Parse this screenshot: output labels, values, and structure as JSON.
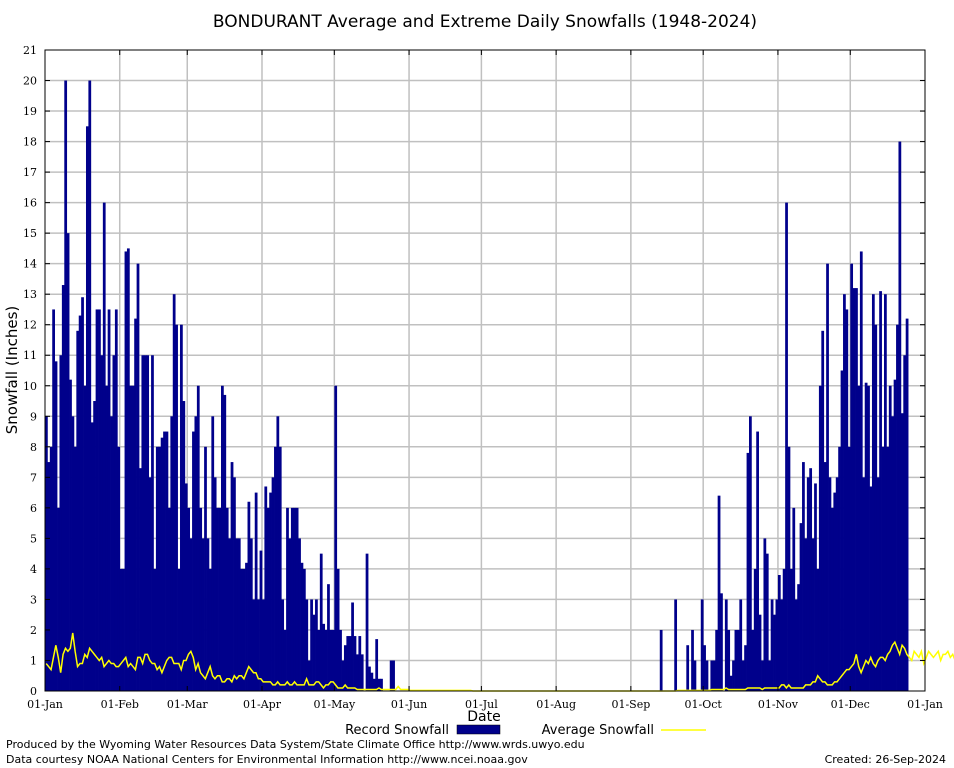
{
  "chart_data": {
    "type": "bar",
    "title": "BONDURANT Average and Extreme Daily Snowfalls (1948-2024)",
    "xlabel": "Date",
    "ylabel": "Snowfall (Inches)",
    "ylim": [
      0,
      21
    ],
    "yticks": [
      0,
      1,
      2,
      3,
      4,
      5,
      6,
      7,
      8,
      9,
      10,
      11,
      12,
      13,
      14,
      15,
      16,
      17,
      18,
      19,
      20,
      21
    ],
    "xticks": [
      {
        "day": 1,
        "label": "01-Jan"
      },
      {
        "day": 32,
        "label": "01-Feb"
      },
      {
        "day": 60,
        "label": "01-Mar"
      },
      {
        "day": 91,
        "label": "01-Apr"
      },
      {
        "day": 121,
        "label": "01-May"
      },
      {
        "day": 152,
        "label": "01-Jun"
      },
      {
        "day": 182,
        "label": "01-Jul"
      },
      {
        "day": 213,
        "label": "01-Aug"
      },
      {
        "day": 244,
        "label": "01-Sep"
      },
      {
        "day": 274,
        "label": "01-Oct"
      },
      {
        "day": 305,
        "label": "01-Nov"
      },
      {
        "day": 335,
        "label": "01-Dec"
      },
      {
        "day": 366,
        "label": "01-Jan"
      }
    ],
    "grid": true,
    "legend_position": "bottom",
    "series": [
      {
        "name": "Record Snowfall",
        "kind": "bar",
        "color": "#00008b",
        "values": [
          9,
          7.5,
          8,
          12.5,
          10.8,
          6,
          11,
          13.3,
          20,
          15,
          10.2,
          9,
          8,
          11.8,
          12.3,
          12.9,
          10,
          18.5,
          20,
          8.8,
          9.5,
          12.5,
          12.5,
          11,
          16,
          10,
          12.5,
          9,
          11,
          12.5,
          8,
          4,
          4,
          14.4,
          14.5,
          10,
          10,
          12.2,
          14,
          7.3,
          11,
          11,
          11,
          7,
          11,
          4,
          8,
          8,
          8.3,
          8.5,
          8.5,
          6,
          9,
          13,
          12,
          4,
          12,
          9.5,
          6.8,
          6,
          5,
          8.5,
          9,
          10,
          6,
          5,
          8,
          5,
          4,
          9,
          7,
          6,
          6,
          10,
          9.7,
          6,
          5,
          7.5,
          7,
          5,
          5,
          4,
          4,
          4.2,
          6.2,
          5,
          3,
          6.5,
          3,
          4.6,
          3,
          6.7,
          6,
          6.5,
          7,
          8,
          9,
          8,
          3,
          2,
          6,
          5,
          6,
          6,
          6,
          5,
          4.2,
          4,
          3,
          1,
          3,
          2.5,
          3,
          2,
          4.5,
          2.2,
          2,
          3.5,
          2,
          2,
          10,
          4,
          2,
          1,
          1.5,
          1.8,
          1.8,
          2.9,
          1.8,
          1.2,
          1.8,
          1.2,
          0,
          4.5,
          0.8,
          0.6,
          0.4,
          1.7,
          0.4,
          0.4,
          0,
          0,
          0,
          1,
          1,
          0,
          0,
          0,
          0,
          0,
          0,
          0,
          0,
          0,
          0,
          0,
          0,
          0,
          0,
          0,
          0,
          0,
          0,
          0,
          0,
          0,
          0,
          0,
          0,
          0,
          0,
          0,
          0,
          0,
          0,
          0,
          0,
          0,
          0,
          0,
          0,
          0,
          0,
          0,
          0,
          0,
          0,
          0,
          0,
          0,
          0,
          0,
          0,
          0,
          0,
          0,
          0,
          0,
          0,
          0,
          0,
          0,
          0,
          0,
          0,
          0,
          0,
          0,
          0,
          0,
          0,
          0,
          0,
          0,
          0,
          0,
          0,
          0,
          0,
          0,
          0,
          0,
          0,
          0,
          0,
          0,
          0,
          0,
          0,
          0,
          0,
          0,
          0,
          0,
          0,
          0,
          0,
          0,
          0,
          0,
          0,
          0,
          0,
          0,
          0,
          0,
          0,
          0,
          0,
          0,
          0,
          0,
          0,
          0,
          0,
          2,
          0,
          0,
          0,
          0,
          0,
          3,
          0,
          0,
          0,
          0,
          1.5,
          0,
          2,
          1,
          0,
          0,
          3,
          1.5,
          1,
          0,
          1,
          1,
          2,
          6.4,
          3.2,
          0,
          3,
          2,
          0.5,
          1,
          2,
          2,
          3,
          1,
          1.5,
          7.8,
          9,
          2,
          4,
          8.5,
          2.5,
          1,
          5,
          4.5,
          1,
          3,
          2.5,
          3,
          3.8,
          3,
          4,
          16,
          8,
          4,
          6,
          3,
          3.5,
          5.5,
          7.5,
          5,
          7,
          7.3,
          5,
          6.8,
          4,
          10,
          11.8,
          7.5,
          14,
          7,
          6,
          6.5,
          7,
          8,
          10.5,
          13,
          12.5,
          8,
          14,
          13.2,
          13.2,
          10,
          14.4,
          7,
          10.1,
          10,
          6.7,
          13,
          12,
          7,
          13.1,
          8,
          13,
          8,
          10,
          9,
          10.2,
          12,
          18,
          9.1,
          11,
          12.2
        ]
      },
      {
        "name": "Average Snowfall",
        "kind": "line",
        "color": "#ffff00",
        "values": [
          0.9,
          0.8,
          0.7,
          1.1,
          1.5,
          1.1,
          0.6,
          1.2,
          1.4,
          1.3,
          1.4,
          1.9,
          1.3,
          0.8,
          0.9,
          0.9,
          1.2,
          1.1,
          1.4,
          1.3,
          1.2,
          1.1,
          1,
          1.1,
          0.8,
          0.9,
          1,
          0.9,
          0.9,
          0.8,
          0.8,
          0.9,
          1,
          1.1,
          0.8,
          0.9,
          0.8,
          0.7,
          1.1,
          1.1,
          0.9,
          1.2,
          1.2,
          1,
          0.9,
          0.9,
          0.7,
          0.8,
          0.6,
          0.8,
          1,
          1.1,
          1.1,
          0.9,
          0.9,
          0.9,
          0.7,
          1,
          1,
          1.2,
          1.3,
          1.1,
          0.7,
          0.9,
          0.6,
          0.5,
          0.4,
          0.6,
          0.8,
          0.5,
          0.4,
          0.5,
          0.5,
          0.3,
          0.3,
          0.4,
          0.4,
          0.3,
          0.5,
          0.4,
          0.5,
          0.5,
          0.4,
          0.6,
          0.8,
          0.7,
          0.6,
          0.6,
          0.4,
          0.4,
          0.3,
          0.3,
          0.3,
          0.3,
          0.2,
          0.2,
          0.3,
          0.2,
          0.2,
          0.2,
          0.3,
          0.2,
          0.2,
          0.3,
          0.2,
          0.2,
          0.2,
          0.2,
          0.4,
          0.2,
          0.2,
          0.2,
          0.3,
          0.3,
          0.2,
          0.1,
          0.2,
          0.2,
          0.3,
          0.3,
          0.2,
          0.1,
          0.1,
          0.1,
          0.2,
          0.1,
          0.1,
          0.1,
          0.1,
          0.05,
          0.05,
          0.05,
          0.05,
          0.05,
          0.05,
          0.05,
          0.05,
          0.05,
          0.1,
          0.05,
          0.05,
          0.05,
          0.05,
          0.05,
          0.05,
          0.05,
          0.15,
          0.05,
          0.05,
          0.05,
          0.05,
          0.02,
          0.02,
          0.02,
          0.02,
          0.02,
          0.02,
          0.02,
          0.02,
          0.02,
          0.02,
          0.02,
          0.02,
          0.02,
          0.02,
          0.02,
          0.02,
          0.02,
          0.02,
          0.02,
          0.02,
          0.02,
          0.02,
          0.02,
          0.02,
          0.02,
          0.02,
          0,
          0,
          0,
          0,
          0,
          0,
          0,
          0,
          0,
          0,
          0,
          0,
          0,
          0,
          0,
          0,
          0,
          0,
          0,
          0,
          0,
          0,
          0,
          0,
          0,
          0,
          0,
          0,
          0,
          0,
          0,
          0,
          0,
          0,
          0,
          0,
          0,
          0,
          0,
          0,
          0,
          0,
          0,
          0,
          0,
          0,
          0,
          0,
          0,
          0,
          0,
          0,
          0,
          0,
          0,
          0,
          0,
          0,
          0,
          0,
          0,
          0,
          0,
          0,
          0,
          0,
          0,
          0,
          0,
          0,
          0,
          0,
          0,
          0,
          0,
          0,
          0,
          0,
          0,
          0,
          0,
          0,
          0,
          0,
          0,
          0.02,
          0.02,
          0.02,
          0.02,
          0.02,
          0.02,
          0.02,
          0.02,
          0.02,
          0.02,
          0.02,
          0.02,
          0.02,
          0.02,
          0.05,
          0.05,
          0.05,
          0.05,
          0.05,
          0.05,
          0.1,
          0.05,
          0.05,
          0.05,
          0.05,
          0.05,
          0.05,
          0.05,
          0.05,
          0.1,
          0.1,
          0.1,
          0.1,
          0.1,
          0.1,
          0.05,
          0.1,
          0.1,
          0.1,
          0.1,
          0.1,
          0.1,
          0.1,
          0.2,
          0.2,
          0.1,
          0.2,
          0.1,
          0.1,
          0.1,
          0.1,
          0.1,
          0.1,
          0.2,
          0.2,
          0.2,
          0.3,
          0.3,
          0.5,
          0.4,
          0.3,
          0.3,
          0.2,
          0.2,
          0.2,
          0.3,
          0.3,
          0.4,
          0.5,
          0.6,
          0.7,
          0.7,
          0.8,
          0.9,
          1.2,
          0.8,
          0.6,
          0.8,
          1,
          0.9,
          1.1,
          0.9,
          0.8,
          1,
          1.1,
          1.1,
          1,
          1.2,
          1.3,
          1.5,
          1.6,
          1.4,
          1.2,
          1.5,
          1.4,
          1.2,
          1.1,
          1,
          1.3,
          1.2,
          1.1,
          1.3,
          0.9,
          1.1,
          1.3,
          1.2,
          1.1,
          1.2,
          1.3,
          1,
          1.2,
          1.2,
          1.3,
          1.1,
          1.2,
          1,
          1.3,
          1.2,
          1.4,
          1.5,
          1.3,
          1.1
        ]
      }
    ]
  },
  "footer": {
    "produced_by": "Produced by the Wyoming Water Resources Data System/State Climate Office http://www.wrds.uwyo.edu",
    "courtesy": "Data courtesy NOAA National Centers for Environmental Information http://www.ncei.noaa.gov",
    "created": "Created:  26-Sep-2024"
  }
}
